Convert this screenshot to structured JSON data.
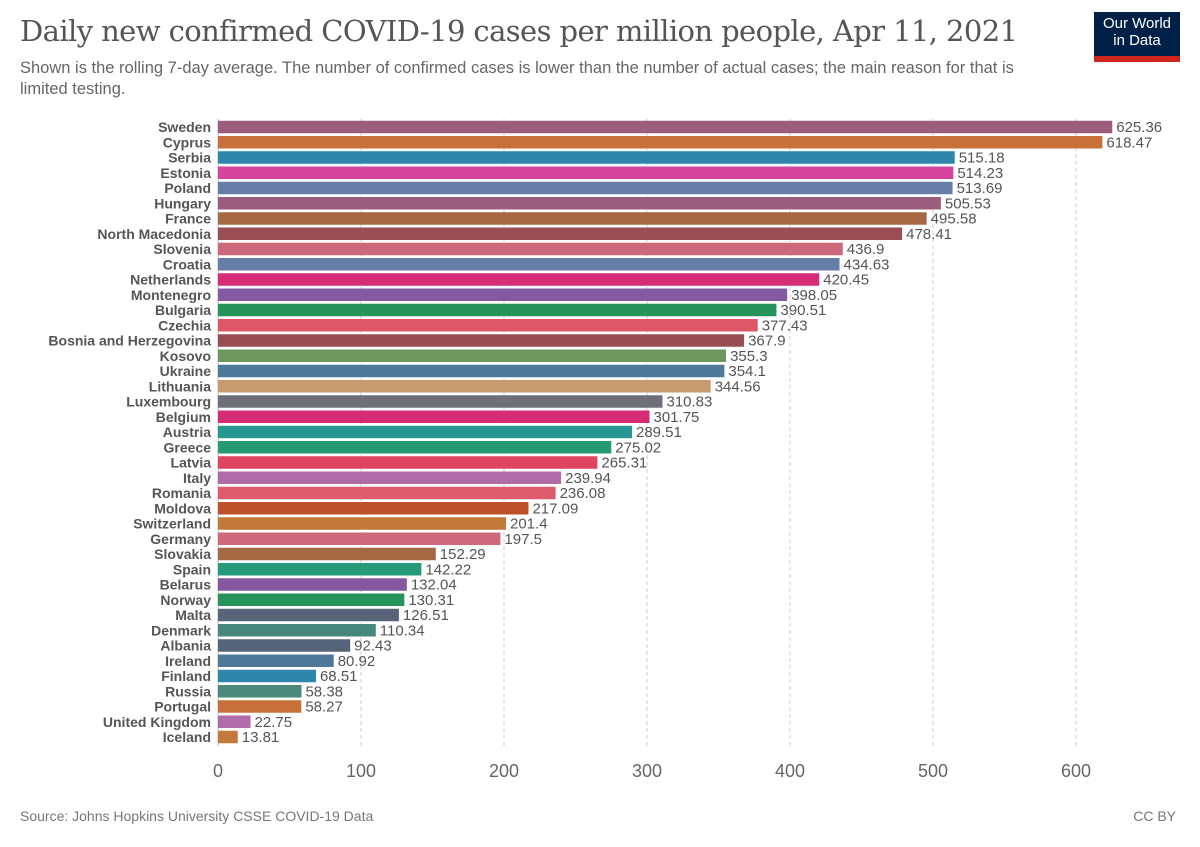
{
  "header": {
    "title": "Daily new confirmed COVID-19 cases per million people, Apr 11, 2021",
    "subtitle": "Shown is the rolling 7-day average. The number of confirmed cases is lower than the number of actual cases; the main reason for that is limited testing.",
    "logo_line1": "Our World",
    "logo_line2": "in Data"
  },
  "footer": {
    "source": "Source: Johns Hopkins University CSSE COVID-19 Data",
    "license": "CC BY"
  },
  "chart_data": {
    "type": "bar",
    "orientation": "horizontal",
    "title": "Daily new confirmed COVID-19 cases per million people, Apr 11, 2021",
    "xlabel": "",
    "ylabel": "",
    "xlim": [
      0,
      650
    ],
    "xticks": [
      0,
      100,
      200,
      300,
      400,
      500,
      600
    ],
    "grid": true,
    "categories": [
      "Sweden",
      "Cyprus",
      "Serbia",
      "Estonia",
      "Poland",
      "Hungary",
      "France",
      "North Macedonia",
      "Slovenia",
      "Croatia",
      "Netherlands",
      "Montenegro",
      "Bulgaria",
      "Czechia",
      "Bosnia and Herzegovina",
      "Kosovo",
      "Ukraine",
      "Lithuania",
      "Luxembourg",
      "Belgium",
      "Austria",
      "Greece",
      "Latvia",
      "Italy",
      "Romania",
      "Moldova",
      "Switzerland",
      "Germany",
      "Slovakia",
      "Spain",
      "Belarus",
      "Norway",
      "Malta",
      "Denmark",
      "Albania",
      "Ireland",
      "Finland",
      "Russia",
      "Portugal",
      "United Kingdom",
      "Iceland"
    ],
    "values": [
      625.36,
      618.47,
      515.18,
      514.23,
      513.69,
      505.53,
      495.58,
      478.41,
      436.9,
      434.63,
      420.45,
      398.05,
      390.51,
      377.43,
      367.9,
      355.3,
      354.1,
      344.56,
      310.83,
      301.75,
      289.51,
      275.02,
      265.31,
      239.94,
      236.08,
      217.09,
      201.4,
      197.5,
      152.29,
      142.22,
      132.04,
      130.31,
      126.51,
      110.34,
      92.43,
      80.92,
      68.51,
      58.38,
      58.27,
      22.75,
      13.81
    ],
    "colors": [
      "#9a5e7c",
      "#c8703a",
      "#2e86ad",
      "#d5449a",
      "#687ea9",
      "#9a5e7c",
      "#a66842",
      "#994d55",
      "#cc6879",
      "#677ea8",
      "#d72c78",
      "#8459a3",
      "#26945a",
      "#dd5768",
      "#984d52",
      "#6d965f",
      "#4f7899",
      "#c89b6e",
      "#6d7079",
      "#d52c76",
      "#259690",
      "#259a75",
      "#e04560",
      "#b06ca9",
      "#de5b6e",
      "#bd5129",
      "#c17a3a",
      "#ce6a7c",
      "#a66842",
      "#269a79",
      "#8457a0",
      "#26935a",
      "#576479",
      "#46877c",
      "#566479",
      "#4f7899",
      "#2e86ad",
      "#4a897b",
      "#c8703a",
      "#b06ca9",
      "#c17a3a"
    ]
  }
}
